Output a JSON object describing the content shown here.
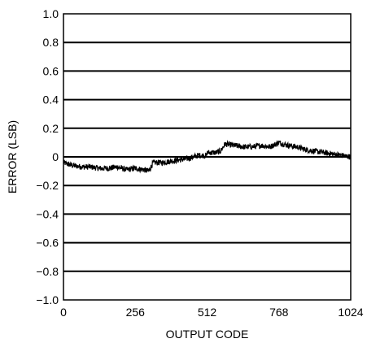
{
  "chart_data": {
    "type": "line",
    "title": "",
    "xlabel": "OUTPUT CODE",
    "ylabel": "ERROR (LSB)",
    "xlim": [
      0,
      1024
    ],
    "ylim": [
      -1.0,
      1.0
    ],
    "x_ticks": [
      0,
      256,
      512,
      768,
      1024
    ],
    "x_tick_labels": [
      "0",
      "256",
      "512",
      "768",
      "1024"
    ],
    "y_ticks": [
      1.0,
      0.8,
      0.6,
      0.4,
      0.2,
      0,
      -0.2,
      -0.4,
      -0.6,
      -0.8,
      -1.0
    ],
    "y_tick_labels": [
      "1.0",
      "0.8",
      "0.6",
      "0.4",
      "0.2",
      "0",
      "−0.2",
      "−0.4",
      "−0.6",
      "−0.8",
      "−1.0"
    ],
    "grid": "horizontal",
    "line_color": "#000000",
    "series": [
      {
        "x": [
          0,
          32,
          64,
          96,
          128,
          160,
          192,
          224,
          256,
          288,
          304,
          320,
          352,
          384,
          416,
          448,
          480,
          511,
          512,
          544,
          560,
          576,
          608,
          640,
          672,
          704,
          736,
          768,
          800,
          832,
          864,
          896,
          928,
          960,
          992,
          1024
        ],
        "values": [
          -0.04,
          -0.06,
          -0.07,
          -0.07,
          -0.08,
          -0.08,
          -0.07,
          -0.09,
          -0.08,
          -0.09,
          -0.1,
          -0.04,
          -0.04,
          -0.03,
          -0.02,
          -0.01,
          0.01,
          0.01,
          0.03,
          0.03,
          0.04,
          0.09,
          0.08,
          0.07,
          0.07,
          0.08,
          0.07,
          0.1,
          0.08,
          0.07,
          0.05,
          0.04,
          0.03,
          0.02,
          0.01,
          0.0
        ]
      }
    ]
  }
}
